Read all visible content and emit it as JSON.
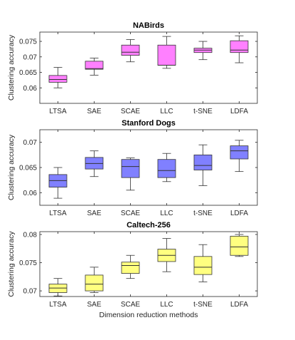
{
  "figure": {
    "shared_xlabel": "Dimension reduction methods"
  },
  "chart_data": [
    {
      "type": "boxplot",
      "title": "NABirds",
      "ylabel": "Clustering accuracy",
      "xlabel": "",
      "categories": [
        "LTSA",
        "SAE",
        "SCAE",
        "LLC",
        "t-SNE",
        "LDFA"
      ],
      "ylim": [
        0.055,
        0.078
      ],
      "yticks": [
        0.06,
        0.065,
        0.07,
        0.075
      ],
      "ytick_labels": [
        "0.06",
        "0.065",
        "0.07",
        "0.075"
      ],
      "box_color": "#ff80ff",
      "boxes": [
        {
          "label": "LTSA",
          "min": 0.06,
          "q1": 0.0618,
          "median": 0.0627,
          "q3": 0.064,
          "max": 0.0666
        },
        {
          "label": "SAE",
          "min": 0.0641,
          "q1": 0.066,
          "median": 0.0662,
          "q3": 0.0686,
          "max": 0.0696
        },
        {
          "label": "SCAE",
          "min": 0.0684,
          "q1": 0.0705,
          "median": 0.0715,
          "q3": 0.0738,
          "max": 0.0756
        },
        {
          "label": "LLC",
          "min": 0.0663,
          "q1": 0.0673,
          "median": 0.0673,
          "q3": 0.0738,
          "max": 0.0766
        },
        {
          "label": "t-SNE",
          "min": 0.0691,
          "q1": 0.0714,
          "median": 0.0722,
          "q3": 0.0728,
          "max": 0.075
        },
        {
          "label": "LDFA",
          "min": 0.0681,
          "q1": 0.0714,
          "median": 0.0722,
          "q3": 0.0752,
          "max": 0.0768
        }
      ]
    },
    {
      "type": "boxplot",
      "title": "Stanford Dogs",
      "ylabel": "Clustering accuracy",
      "xlabel": "",
      "categories": [
        "LTSA",
        "SAE",
        "SCAE",
        "LLC",
        "t-SNE",
        "LDFA"
      ],
      "ylim": [
        0.0575,
        0.0725
      ],
      "yticks": [
        0.06,
        0.065,
        0.07
      ],
      "ytick_labels": [
        "0.06",
        "0.065",
        "0.07"
      ],
      "box_color": "#8080ff",
      "boxes": [
        {
          "label": "LTSA",
          "min": 0.0589,
          "q1": 0.0611,
          "median": 0.0624,
          "q3": 0.0636,
          "max": 0.065
        },
        {
          "label": "SAE",
          "min": 0.0632,
          "q1": 0.0647,
          "median": 0.0658,
          "q3": 0.067,
          "max": 0.0683
        },
        {
          "label": "SCAE",
          "min": 0.0605,
          "q1": 0.063,
          "median": 0.0652,
          "q3": 0.0666,
          "max": 0.0669
        },
        {
          "label": "LLC",
          "min": 0.0622,
          "q1": 0.063,
          "median": 0.0644,
          "q3": 0.0666,
          "max": 0.0678
        },
        {
          "label": "t-SNE",
          "min": 0.0614,
          "q1": 0.0645,
          "median": 0.0654,
          "q3": 0.0675,
          "max": 0.0695
        },
        {
          "label": "LDFA",
          "min": 0.0642,
          "q1": 0.0667,
          "median": 0.0683,
          "q3": 0.0693,
          "max": 0.0704
        }
      ]
    },
    {
      "type": "boxplot",
      "title": "Caltech-256",
      "ylabel": "Clustering accuracy",
      "xlabel": "Dimension reduction methods",
      "categories": [
        "LTSA",
        "SAE",
        "SCAE",
        "LLC",
        "t-SNE",
        "LDFA"
      ],
      "ylim": [
        0.069,
        0.0805
      ],
      "yticks": [
        0.07,
        0.075,
        0.08
      ],
      "ytick_labels": [
        "0.07",
        "0.075",
        "0.08"
      ],
      "box_color": "#ffff80",
      "boxes": [
        {
          "label": "LTSA",
          "min": 0.0691,
          "q1": 0.0697,
          "median": 0.0705,
          "q3": 0.0712,
          "max": 0.0722
        },
        {
          "label": "SAE",
          "min": 0.0697,
          "q1": 0.07,
          "median": 0.0712,
          "q3": 0.0728,
          "max": 0.0742
        },
        {
          "label": "SCAE",
          "min": 0.0722,
          "q1": 0.0731,
          "median": 0.0745,
          "q3": 0.0751,
          "max": 0.0763
        },
        {
          "label": "LLC",
          "min": 0.0734,
          "q1": 0.0752,
          "median": 0.0763,
          "q3": 0.0774,
          "max": 0.0793
        },
        {
          "label": "t-SNE",
          "min": 0.0716,
          "q1": 0.0729,
          "median": 0.0742,
          "q3": 0.0761,
          "max": 0.0782
        },
        {
          "label": "LDFA",
          "min": 0.0761,
          "q1": 0.0763,
          "median": 0.0778,
          "q3": 0.0797,
          "max": 0.08
        }
      ]
    }
  ]
}
